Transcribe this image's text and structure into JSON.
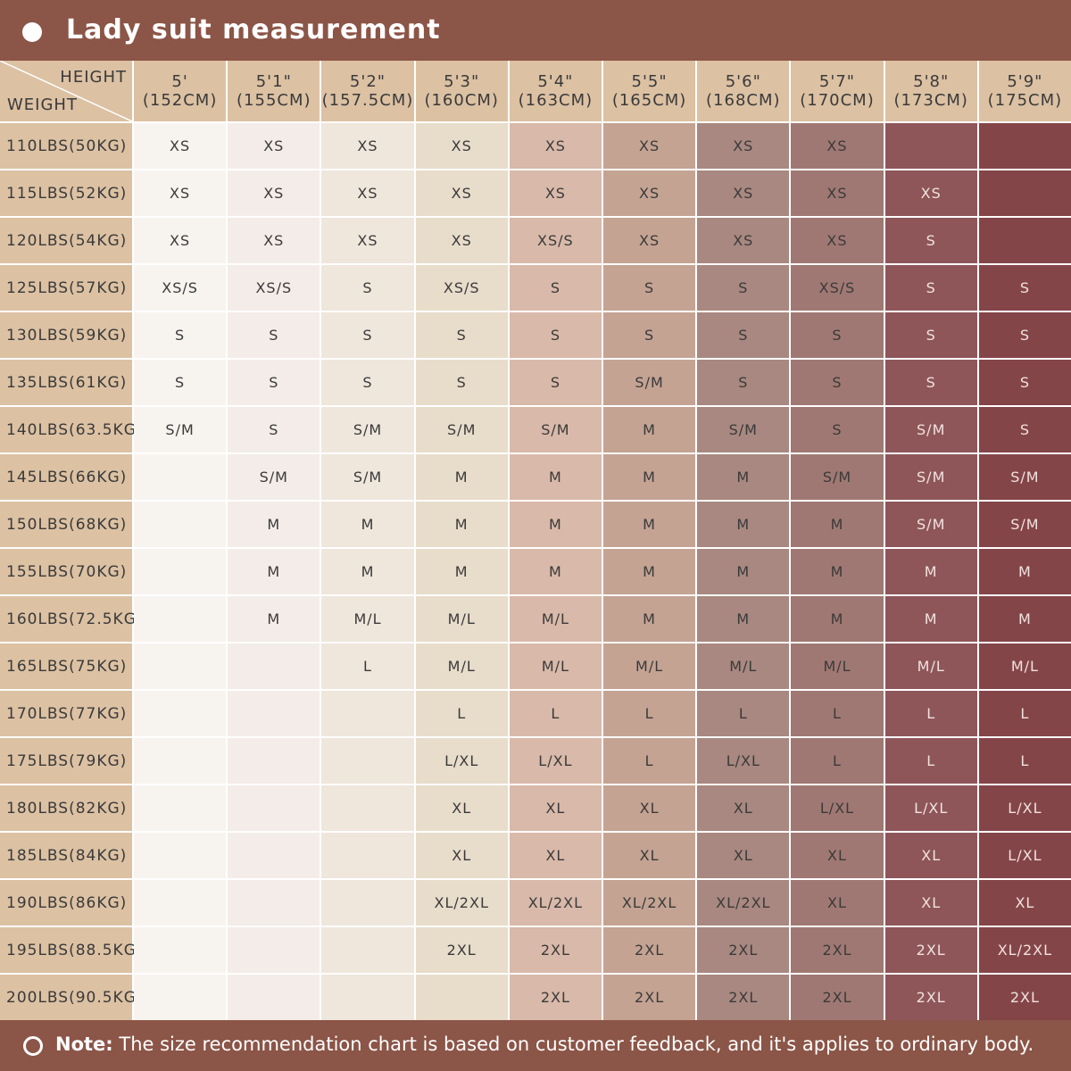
{
  "header": {
    "title": "Lady suit measurement"
  },
  "table": {
    "corner": {
      "top": "HEIGHT",
      "bottom": "WEIGHT"
    },
    "columns": [
      {
        "ft": "5'",
        "cm": "(152CM)"
      },
      {
        "ft": "5'1\"",
        "cm": "(155CM)"
      },
      {
        "ft": "5'2\"",
        "cm": "(157.5CM)"
      },
      {
        "ft": "5'3\"",
        "cm": "(160CM)"
      },
      {
        "ft": "5'4\"",
        "cm": "(163CM)"
      },
      {
        "ft": "5'5\"",
        "cm": "(165CM)"
      },
      {
        "ft": "5'6\"",
        "cm": "(168CM)"
      },
      {
        "ft": "5'7\"",
        "cm": "(170CM)"
      },
      {
        "ft": "5'8\"",
        "cm": "(173CM)"
      },
      {
        "ft": "5'9\"",
        "cm": "(175CM)"
      }
    ],
    "rows": [
      {
        "label": "110LBS(50KG)",
        "cells": [
          "XS",
          "XS",
          "XS",
          "XS",
          "XS",
          "XS",
          "XS",
          "XS",
          null,
          null
        ]
      },
      {
        "label": "115LBS(52KG)",
        "cells": [
          "XS",
          "XS",
          "XS",
          "XS",
          "XS",
          "XS",
          "XS",
          "XS",
          "XS",
          null
        ]
      },
      {
        "label": "120LBS(54KG)",
        "cells": [
          "XS",
          "XS",
          "XS",
          "XS",
          "XS/S",
          "XS",
          "XS",
          "XS",
          "S",
          null
        ]
      },
      {
        "label": "125LBS(57KG)",
        "cells": [
          "XS/S",
          "XS/S",
          "S",
          "XS/S",
          "S",
          "S",
          "S",
          "XS/S",
          "S",
          "S"
        ]
      },
      {
        "label": "130LBS(59KG)",
        "cells": [
          "S",
          "S",
          "S",
          "S",
          "S",
          "S",
          "S",
          "S",
          "S",
          "S"
        ]
      },
      {
        "label": "135LBS(61KG)",
        "cells": [
          "S",
          "S",
          "S",
          "S",
          "S",
          "S/M",
          "S",
          "S",
          "S",
          "S"
        ]
      },
      {
        "label": "140LBS(63.5KG)",
        "cells": [
          "S/M",
          "S",
          "S/M",
          "S/M",
          "S/M",
          "M",
          "S/M",
          "S",
          "S/M",
          "S"
        ]
      },
      {
        "label": "145LBS(66KG)",
        "cells": [
          null,
          "S/M",
          "S/M",
          "M",
          "M",
          "M",
          "M",
          "S/M",
          "S/M",
          "S/M"
        ]
      },
      {
        "label": "150LBS(68KG)",
        "cells": [
          null,
          "M",
          "M",
          "M",
          "M",
          "M",
          "M",
          "M",
          "S/M",
          "S/M"
        ]
      },
      {
        "label": "155LBS(70KG)",
        "cells": [
          null,
          "M",
          "M",
          "M",
          "M",
          "M",
          "M",
          "M",
          "M",
          "M"
        ]
      },
      {
        "label": "160LBS(72.5KG)",
        "cells": [
          null,
          "M",
          "M/L",
          "M/L",
          "M/L",
          "M",
          "M",
          "M",
          "M",
          "M"
        ]
      },
      {
        "label": "165LBS(75KG)",
        "cells": [
          null,
          null,
          "L",
          "M/L",
          "M/L",
          "M/L",
          "M/L",
          "M/L",
          "M/L",
          "M/L"
        ]
      },
      {
        "label": "170LBS(77KG)",
        "cells": [
          null,
          null,
          null,
          "L",
          "L",
          "L",
          "L",
          "L",
          "L",
          "L"
        ]
      },
      {
        "label": "175LBS(79KG)",
        "cells": [
          null,
          null,
          null,
          "L/XL",
          "L/XL",
          "L",
          "L/XL",
          "L",
          "L",
          "L"
        ]
      },
      {
        "label": "180LBS(82KG)",
        "cells": [
          null,
          null,
          null,
          "XL",
          "XL",
          "XL",
          "XL",
          "L/XL",
          "L/XL",
          "L/XL"
        ]
      },
      {
        "label": "185LBS(84KG)",
        "cells": [
          null,
          null,
          null,
          "XL",
          "XL",
          "XL",
          "XL",
          "XL",
          "XL",
          "L/XL"
        ]
      },
      {
        "label": "190LBS(86KG)",
        "cells": [
          null,
          null,
          null,
          "XL/2XL",
          "XL/2XL",
          "XL/2XL",
          "XL/2XL",
          "XL",
          "XL",
          "XL"
        ]
      },
      {
        "label": "195LBS(88.5KG)",
        "cells": [
          null,
          null,
          null,
          "2XL",
          "2XL",
          "2XL",
          "2XL",
          "2XL",
          "2XL",
          "XL/2XL"
        ]
      },
      {
        "label": "200LBS(90.5KG)",
        "cells": [
          null,
          null,
          null,
          null,
          "2XL",
          "2XL",
          "2XL",
          "2XL",
          "2XL",
          "2XL"
        ]
      }
    ]
  },
  "note": {
    "label": "Note:",
    "text": "The size recommendation chart is based on customer feedback, and it's applies to ordinary body."
  }
}
